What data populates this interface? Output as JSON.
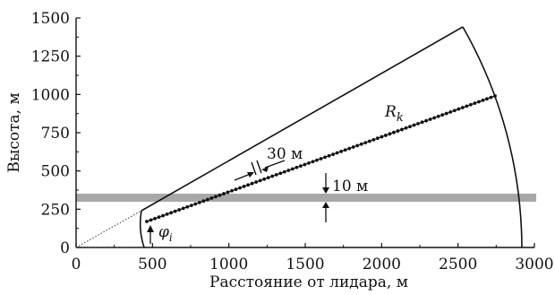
{
  "chart_data": {
    "type": "diagram",
    "xlabel": "Расстояние от лидара, м",
    "ylabel": "Высота, м",
    "xlim": [
      0,
      3000
    ],
    "ylim": [
      0,
      1500
    ],
    "x_ticks": [
      "0",
      "500",
      "1000",
      "1500",
      "2000",
      "2500",
      "3000"
    ],
    "y_ticks": [
      "0",
      "250",
      "500",
      "750",
      "1000",
      "1250",
      "1500"
    ],
    "sector": {
      "inner_radius": 500,
      "outer_radius": 2930,
      "min_angle_deg": 30,
      "max_angle_deg": 30
    },
    "beam": {
      "label": "Rk",
      "start": [
        480,
        170
      ],
      "end": [
        2765,
        1000
      ],
      "spacing_label": "30 м"
    },
    "band": {
      "center_altitude": 320,
      "thickness_label": "10 м",
      "color": "#a8a8a8"
    },
    "angle_label": "φi"
  },
  "labels": {
    "xlabel": "Расстояние от лидара, м",
    "ylabel": "Высота, м",
    "rk_main": "R",
    "rk_sub": "k",
    "phi_main": "φ",
    "phi_sub": "i",
    "spacing": "30 м",
    "thickness": "10 м",
    "x_ticks": [
      "0",
      "500",
      "1000",
      "1500",
      "2000",
      "2500",
      "3000"
    ],
    "y_ticks": [
      "0",
      "250",
      "500",
      "750",
      "1000",
      "1250",
      "1500"
    ]
  }
}
